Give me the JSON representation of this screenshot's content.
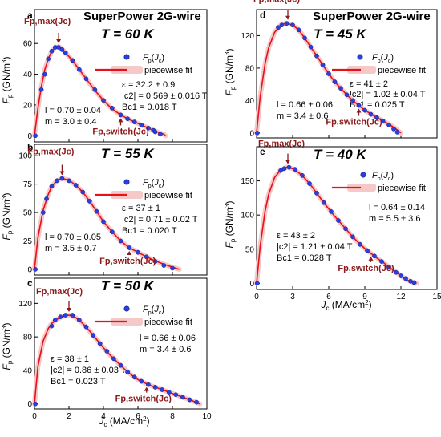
{
  "chart_data": [
    {
      "letter": "a",
      "header": "SuperPower 2G-wire",
      "temp_label": "T = 60 K",
      "type": "scatter",
      "ylabel": "Fp (GN/m3)",
      "xlim": [
        0,
        10
      ],
      "ylim": [
        -4,
        82
      ],
      "yticks": [
        0,
        20,
        40,
        60
      ],
      "xticks": [],
      "points": [
        [
          0.05,
          0
        ],
        [
          0.4,
          30
        ],
        [
          0.6,
          40
        ],
        [
          0.8,
          50
        ],
        [
          1.0,
          55
        ],
        [
          1.2,
          57.5
        ],
        [
          1.4,
          57.5
        ],
        [
          1.6,
          56
        ],
        [
          1.8,
          54
        ],
        [
          2.2,
          49
        ],
        [
          2.6,
          43
        ],
        [
          3.0,
          37
        ],
        [
          3.5,
          30
        ],
        [
          4.0,
          23
        ],
        [
          4.5,
          18
        ],
        [
          5.0,
          13.5
        ],
        [
          5.4,
          11
        ],
        [
          5.8,
          9
        ],
        [
          6.2,
          7
        ],
        [
          6.6,
          5
        ],
        [
          6.9,
          3.5
        ],
        [
          7.0,
          2.5
        ],
        [
          7.3,
          1
        ]
      ],
      "fit": [
        [
          0,
          0
        ],
        [
          0.2,
          18
        ],
        [
          0.4,
          32
        ],
        [
          0.6,
          43
        ],
        [
          0.8,
          50
        ],
        [
          1.0,
          55
        ],
        [
          1.2,
          57.5
        ],
        [
          1.4,
          58
        ],
        [
          1.6,
          56.5
        ],
        [
          1.8,
          54
        ],
        [
          2.2,
          49
        ],
        [
          2.6,
          43
        ],
        [
          3.0,
          37
        ],
        [
          3.5,
          29.5
        ],
        [
          4.0,
          23
        ],
        [
          4.5,
          17.5
        ],
        [
          5.0,
          13.5
        ],
        [
          5.5,
          10.5
        ],
        [
          6.0,
          8
        ],
        [
          6.5,
          5.5
        ],
        [
          7.0,
          3
        ],
        [
          7.5,
          1
        ],
        [
          7.6,
          0
        ]
      ],
      "legend": [
        "Fp(Jc)",
        "piecewise fit"
      ],
      "param_block_1": [
        "ε = 32.2 ± 0.9",
        "|c2| = 0.569 ± 0.016 T",
        "Bc1 = 0.018 T"
      ],
      "param_block_2": [
        "l = 0.70 ± 0.04",
        "m = 3.0 ± 0.4"
      ],
      "annot_max": "Fp,max(Jc)",
      "annot_switch": "Fp,switch(Jc)",
      "max_point": [
        1.4,
        58
      ],
      "switch_point": [
        5.0,
        13.5
      ]
    },
    {
      "letter": "b",
      "header": "",
      "temp_label": "T = 55 K",
      "type": "scatter",
      "ylabel": "Fp (GN/m3)",
      "xlim": [
        0,
        10
      ],
      "ylim": [
        -5,
        110
      ],
      "yticks": [
        0,
        25,
        50,
        75,
        100
      ],
      "xticks": [],
      "points": [
        [
          0.05,
          0
        ],
        [
          0.5,
          50
        ],
        [
          0.7,
          62
        ],
        [
          1.0,
          73
        ],
        [
          1.3,
          78
        ],
        [
          1.6,
          80
        ],
        [
          2.0,
          78
        ],
        [
          2.4,
          74
        ],
        [
          2.8,
          68
        ],
        [
          3.2,
          60
        ],
        [
          3.6,
          51
        ],
        [
          4.0,
          42
        ],
        [
          4.5,
          33
        ],
        [
          5.0,
          25
        ],
        [
          5.5,
          19
        ],
        [
          6.0,
          15
        ],
        [
          6.5,
          11
        ],
        [
          7.0,
          7
        ],
        [
          7.5,
          3.5
        ],
        [
          8.0,
          1
        ]
      ],
      "fit": [
        [
          0,
          0
        ],
        [
          0.2,
          28
        ],
        [
          0.5,
          52
        ],
        [
          0.8,
          66
        ],
        [
          1.0,
          73
        ],
        [
          1.3,
          78
        ],
        [
          1.6,
          80
        ],
        [
          2.0,
          78.5
        ],
        [
          2.4,
          74
        ],
        [
          2.8,
          68
        ],
        [
          3.2,
          60
        ],
        [
          3.6,
          51
        ],
        [
          4.0,
          42
        ],
        [
          4.5,
          33
        ],
        [
          5.0,
          25
        ],
        [
          5.5,
          19
        ],
        [
          6.0,
          15
        ],
        [
          6.5,
          11
        ],
        [
          7.0,
          7.5
        ],
        [
          7.5,
          4.5
        ],
        [
          8.0,
          2
        ],
        [
          8.4,
          0
        ]
      ],
      "legend": [
        "Fp(Jc)",
        "piecewise fit"
      ],
      "param_block_1": [
        "ε = 37 ± 1",
        "|c2| = 0.71 ± 0.02 T",
        "Bc1 = 0.020 T"
      ],
      "param_block_2": [
        "l = 0.70 ± 0.05",
        "m = 3.5 ± 0.7"
      ],
      "annot_max": "Fp,max(Jc)",
      "annot_switch": "Fp,switch(Jc)",
      "max_point": [
        1.6,
        80
      ],
      "switch_point": [
        5.5,
        19
      ]
    },
    {
      "letter": "c",
      "header": "",
      "temp_label": "T = 50 K",
      "type": "scatter",
      "xlabel": "Jc (MA/cm2)",
      "ylabel": "Fp (GN/m3)",
      "xlim": [
        0,
        10
      ],
      "ylim": [
        -6,
        150
      ],
      "yticks": [
        0,
        40,
        80,
        120
      ],
      "xticks": [
        0,
        2,
        4,
        6,
        8,
        10
      ],
      "points": [
        [
          0.05,
          0
        ],
        [
          1.0,
          93
        ],
        [
          1.2,
          100
        ],
        [
          1.5,
          104
        ],
        [
          1.8,
          106
        ],
        [
          2.2,
          106
        ],
        [
          2.6,
          100
        ],
        [
          3.0,
          92
        ],
        [
          3.4,
          82
        ],
        [
          3.8,
          72
        ],
        [
          4.2,
          63
        ],
        [
          4.6,
          54
        ],
        [
          5.0,
          46
        ],
        [
          5.4,
          38
        ],
        [
          5.8,
          32
        ],
        [
          6.2,
          27
        ],
        [
          6.6,
          23
        ],
        [
          7.0,
          20
        ],
        [
          7.4,
          17
        ],
        [
          7.8,
          14
        ],
        [
          8.2,
          11
        ],
        [
          8.6,
          8
        ],
        [
          9.0,
          5
        ],
        [
          9.4,
          2
        ]
      ],
      "fit": [
        [
          0,
          0
        ],
        [
          0.2,
          45
        ],
        [
          0.5,
          75
        ],
        [
          0.8,
          90
        ],
        [
          1.0,
          96
        ],
        [
          1.3,
          101
        ],
        [
          1.6,
          104
        ],
        [
          2.0,
          106
        ],
        [
          2.4,
          103
        ],
        [
          2.8,
          96
        ],
        [
          3.2,
          87
        ],
        [
          3.6,
          77
        ],
        [
          4.0,
          67
        ],
        [
          4.4,
          58
        ],
        [
          4.8,
          50
        ],
        [
          5.2,
          42
        ],
        [
          5.6,
          35
        ],
        [
          6.0,
          29
        ],
        [
          6.4,
          25
        ],
        [
          6.8,
          21.5
        ],
        [
          7.2,
          18.5
        ],
        [
          7.6,
          15.5
        ],
        [
          8.0,
          12.5
        ],
        [
          8.4,
          9.5
        ],
        [
          8.8,
          6.5
        ],
        [
          9.2,
          3.5
        ],
        [
          9.6,
          0
        ]
      ],
      "legend": [
        "Fp(Jc)",
        "piecewise fit"
      ],
      "param_block_1": [
        "ε = 38 ± 1",
        "|c2| = 0.86 ± 0.03 T",
        "Bc1 = 0.023 T"
      ],
      "param_block_2": [
        "l = 0.66 ± 0.06",
        "m = 3.4 ± 0.6"
      ],
      "annot_max": "Fp,max(Jc)",
      "annot_switch": "Fp,switch(Jc)",
      "max_point": [
        2.0,
        106
      ],
      "switch_point": [
        6.5,
        24
      ]
    },
    {
      "letter": "d",
      "header": "SuperPower 2G-wire",
      "temp_label": "T = 45 K",
      "type": "scatter",
      "ylabel": "Fp (GN/m3)",
      "xlim": [
        0,
        15
      ],
      "ylim": [
        -6,
        152
      ],
      "yticks": [
        0,
        40,
        80,
        120
      ],
      "xticks": [],
      "points": [
        [
          0.05,
          0
        ],
        [
          1.8,
          130
        ],
        [
          2.1,
          133
        ],
        [
          2.5,
          135
        ],
        [
          3.0,
          133
        ],
        [
          3.5,
          127
        ],
        [
          4.0,
          117
        ],
        [
          4.5,
          106
        ],
        [
          5.0,
          95
        ],
        [
          5.5,
          84
        ],
        [
          6.0,
          73
        ],
        [
          6.5,
          63
        ],
        [
          7.0,
          55
        ],
        [
          7.5,
          47
        ],
        [
          8.0,
          40
        ],
        [
          8.5,
          34
        ],
        [
          9.0,
          28
        ],
        [
          9.5,
          23
        ],
        [
          10.0,
          19
        ],
        [
          10.5,
          15
        ],
        [
          11.0,
          10
        ],
        [
          11.4,
          5
        ],
        [
          11.7,
          1
        ]
      ],
      "fit": [
        [
          0,
          0
        ],
        [
          0.3,
          45
        ],
        [
          0.7,
          85
        ],
        [
          1.0,
          105
        ],
        [
          1.5,
          124
        ],
        [
          2.0,
          133
        ],
        [
          2.5,
          135.5
        ],
        [
          3.0,
          133
        ],
        [
          3.5,
          127
        ],
        [
          4.0,
          117
        ],
        [
          4.5,
          106
        ],
        [
          5.0,
          95
        ],
        [
          5.5,
          84
        ],
        [
          6.0,
          73
        ],
        [
          6.5,
          63
        ],
        [
          7.0,
          55
        ],
        [
          7.5,
          47
        ],
        [
          8.0,
          40
        ],
        [
          8.5,
          34
        ],
        [
          9.0,
          28
        ],
        [
          9.5,
          23.5
        ],
        [
          10.0,
          19
        ],
        [
          10.5,
          15
        ],
        [
          11.0,
          11
        ],
        [
          11.5,
          6
        ],
        [
          12.0,
          0
        ]
      ],
      "legend": [
        "Fp(Jc)",
        "piecewise fit"
      ],
      "param_block_1": [
        "ε = 41 ± 2",
        "|c2| = 1.02 ± 0.04 T",
        "Bc1 = 0.025 T"
      ],
      "param_block_2": [
        "l = 0.66 ± 0.06",
        "m = 3.4 ± 0.6"
      ],
      "annot_max": "Fp,max(Jc)",
      "annot_switch": "Fp,switch(Jc)",
      "max_point": [
        2.6,
        135.5
      ],
      "switch_point": [
        8.5,
        34
      ]
    },
    {
      "letter": "e",
      "header": "",
      "temp_label": "T = 40 K",
      "type": "scatter",
      "xlabel": "Jc (MA/cm2)",
      "ylabel": "Fp (GN/m3)",
      "xlim": [
        0,
        15
      ],
      "ylim": [
        -9,
        200
      ],
      "yticks": [
        0,
        50,
        100,
        150
      ],
      "xticks": [
        0,
        3,
        6,
        9,
        12,
        15
      ],
      "points": [
        [
          0.05,
          0
        ],
        [
          2.0,
          165
        ],
        [
          2.3,
          168
        ],
        [
          2.7,
          170
        ],
        [
          3.2,
          167
        ],
        [
          3.8,
          158
        ],
        [
          4.4,
          146
        ],
        [
          5.0,
          132
        ],
        [
          5.6,
          118
        ],
        [
          6.2,
          105
        ],
        [
          6.8,
          92
        ],
        [
          7.4,
          80
        ],
        [
          8.0,
          68
        ],
        [
          8.6,
          57
        ],
        [
          9.2,
          48
        ],
        [
          9.8,
          40
        ],
        [
          10.4,
          32
        ],
        [
          11.0,
          24
        ],
        [
          11.6,
          16
        ],
        [
          12.0,
          11
        ],
        [
          12.4,
          7
        ],
        [
          12.8,
          3
        ],
        [
          13.1,
          1
        ]
      ],
      "fit": [
        [
          0,
          0
        ],
        [
          0.3,
          55
        ],
        [
          0.7,
          105
        ],
        [
          1.0,
          130
        ],
        [
          1.5,
          155
        ],
        [
          2.0,
          166
        ],
        [
          2.5,
          170
        ],
        [
          3.0,
          168
        ],
        [
          3.5,
          162
        ],
        [
          4.0,
          154
        ],
        [
          4.5,
          144
        ],
        [
          5.0,
          132
        ],
        [
          5.5,
          120
        ],
        [
          6.0,
          109
        ],
        [
          6.5,
          98
        ],
        [
          7.0,
          88
        ],
        [
          7.5,
          78
        ],
        [
          8.0,
          68
        ],
        [
          8.5,
          59
        ],
        [
          9.0,
          51
        ],
        [
          9.5,
          44
        ],
        [
          10.0,
          37
        ],
        [
          10.5,
          31
        ],
        [
          11.0,
          24
        ],
        [
          11.5,
          17.5
        ],
        [
          12.0,
          11
        ],
        [
          12.5,
          5
        ],
        [
          13.0,
          1.5
        ],
        [
          13.3,
          0
        ]
      ],
      "legend": [
        "Fp(Jc)",
        "piecewise fit"
      ],
      "param_block_1": [
        "ε = 43 ± 2",
        "|c2| = 1.21 ± 0.04 T",
        "Bc1 = 0.028 T"
      ],
      "param_block_2": [
        "l = 0.64 ± 0.14",
        "m = 5.5 ± 3.6"
      ],
      "annot_max": "Fp,max(Jc)",
      "annot_switch": "Fp,switch(Jc)",
      "max_point": [
        2.6,
        170
      ],
      "switch_point": [
        9.5,
        44
      ]
    }
  ],
  "colors": {
    "points": "#2b3fe0",
    "points_edge": "#10208a",
    "fit_line": "#e8101a",
    "fit_band": "#f6c9c9",
    "annotation": "#8b1a1a",
    "axis": "#000000"
  }
}
